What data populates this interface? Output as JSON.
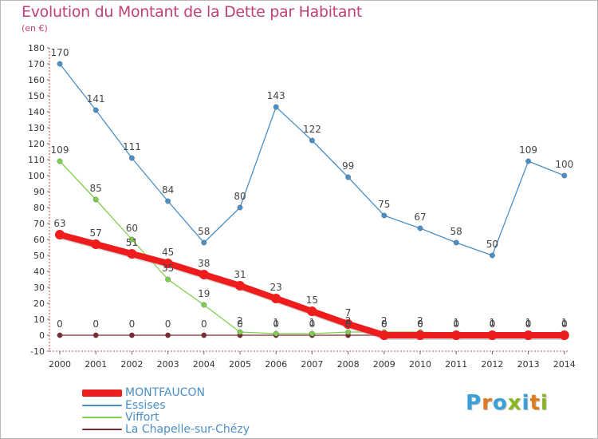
{
  "title": "Evolution du Montant de la Dette par Habitant",
  "subtitle": "(en €)",
  "brand": [
    "P",
    "r",
    "o",
    "x",
    "i",
    "t",
    "i"
  ],
  "brand_colors": [
    "#3aa0d8",
    "#e07a20",
    "#3aa0d8",
    "#88b820",
    "#3aa0d8",
    "#e07a20",
    "#88b820"
  ],
  "chart_data": {
    "type": "line",
    "x": [
      "2000",
      "2001",
      "2002",
      "2003",
      "2004",
      "2005",
      "2006",
      "2007",
      "2008",
      "2009",
      "2010",
      "2011",
      "2012",
      "2013",
      "2014"
    ],
    "ylim": [
      -10,
      180
    ],
    "yticks": [
      -10,
      0,
      10,
      20,
      30,
      40,
      50,
      60,
      70,
      80,
      90,
      100,
      110,
      120,
      130,
      140,
      150,
      160,
      170,
      180
    ],
    "grid": false,
    "legend_position": "bottom-left",
    "series": [
      {
        "name": "MONTFAUCON",
        "color": "#ee1c1c",
        "values": [
          63,
          57,
          51,
          45,
          38,
          31,
          23,
          15,
          7,
          0,
          0,
          0,
          0,
          0,
          0
        ],
        "labels": [
          "63",
          "57",
          "51",
          "45",
          "38",
          "31",
          "23",
          "15",
          "7",
          "0",
          "0",
          "0",
          "0",
          "0",
          "0"
        ]
      },
      {
        "name": "Essises",
        "color": "#4b8fc8",
        "values": [
          170,
          141,
          111,
          84,
          58,
          80,
          143,
          122,
          99,
          75,
          67,
          58,
          50,
          109,
          100
        ],
        "labels": [
          "170",
          "141",
          "111",
          "84",
          "58",
          "80",
          "143",
          "122",
          "99",
          "75",
          "67",
          "58",
          "50",
          "109",
          "100"
        ]
      },
      {
        "name": "Viffort",
        "color": "#7ed04c",
        "values": [
          109,
          85,
          60,
          35,
          19,
          2,
          1,
          1,
          2,
          2,
          2,
          1,
          1,
          1,
          1
        ],
        "labels": [
          "109",
          "85",
          "60",
          "35",
          "19",
          "2",
          "1",
          "1",
          "2",
          "2",
          "2",
          "1",
          "1",
          "1",
          "1"
        ]
      },
      {
        "name": "La Chapelle-sur-Chézy",
        "color": "#7a2a30",
        "values": [
          0,
          0,
          0,
          0,
          0,
          0,
          0,
          0,
          0,
          0,
          0,
          0,
          0,
          0,
          0
        ],
        "labels": [
          "0",
          "0",
          "0",
          "0",
          "0",
          "0",
          "0",
          "0",
          "0",
          "0",
          "0",
          "0",
          "0",
          "0",
          "0"
        ]
      }
    ]
  }
}
